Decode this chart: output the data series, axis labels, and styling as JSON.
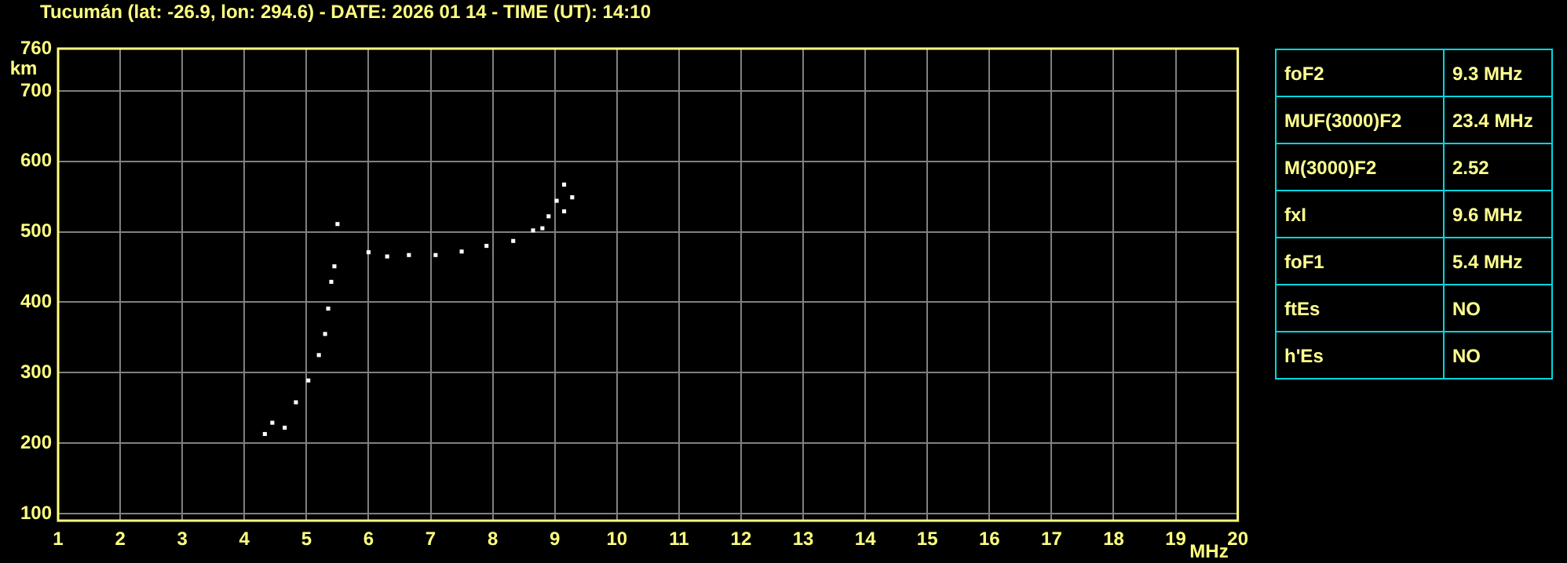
{
  "chart_data": [
    {
      "type": "scatter",
      "title": "Tucumán (lat: -26.9, lon: 294.6) - DATE: 2026 01 14 - TIME (UT): 14:10",
      "xlabel": "MHz",
      "ylabel": "km",
      "xlim": [
        1,
        20
      ],
      "ylim": [
        90,
        760
      ],
      "xticks": [
        1,
        2,
        3,
        4,
        5,
        6,
        7,
        8,
        9,
        10,
        11,
        12,
        13,
        14,
        15,
        16,
        17,
        18,
        19,
        20
      ],
      "yticks": [
        100,
        200,
        300,
        400,
        500,
        600,
        700,
        760
      ],
      "grid": true,
      "marker": "square",
      "legend": false,
      "series": [
        {
          "color": "#ffffff",
          "x": [
            4.33,
            4.45,
            4.65,
            4.83,
            5.03,
            5.2,
            5.3,
            5.35,
            5.4,
            5.45,
            5.5,
            6.0,
            6.3,
            6.65,
            7.08,
            7.5,
            7.9,
            8.33,
            8.65,
            8.9,
            9.03,
            9.15
          ],
          "values": [
            213,
            229,
            222,
            258,
            289,
            325,
            355,
            391,
            429,
            451,
            511,
            471,
            465,
            467,
            467,
            472,
            480,
            487,
            502,
            522,
            544,
            567
          ]
        },
        {
          "color": "#ffffff",
          "x": [
            8.8,
            9.15,
            9.28
          ],
          "values": [
            505,
            529,
            549
          ]
        }
      ]
    },
    {
      "type": "other",
      "annotations": [
        "foF2",
        "9.3 MHz",
        "MUF(3000)F2",
        "23.4 MHz",
        "M(3000)F2",
        "2.52",
        "fxI",
        "9.6 MHz",
        "foF1",
        "5.4 MHz",
        "ftEs",
        "NO",
        "h'Es",
        "NO"
      ]
    }
  ]
}
